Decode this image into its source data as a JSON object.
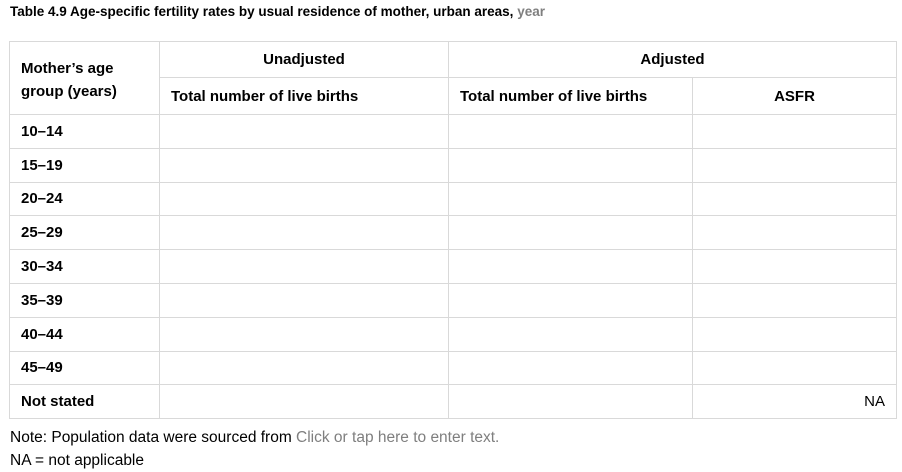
{
  "title": {
    "main": "Table 4.9 Age-specific fertility rates by usual residence of mother, urban areas, ",
    "placeholder": "year"
  },
  "table": {
    "header": {
      "age_group": "Mother’s age group (years)",
      "unadjusted": "Unadjusted",
      "adjusted": "Adjusted",
      "unadj_births": "Total number of live births",
      "adj_births": "Total number of live births",
      "asfr": "ASFR"
    },
    "rows": [
      {
        "age": "10–14",
        "unadj_births": "",
        "adj_births": "",
        "asfr": ""
      },
      {
        "age": "15–19",
        "unadj_births": "",
        "adj_births": "",
        "asfr": ""
      },
      {
        "age": "20–24",
        "unadj_births": "",
        "adj_births": "",
        "asfr": ""
      },
      {
        "age": "25–29",
        "unadj_births": "",
        "adj_births": "",
        "asfr": ""
      },
      {
        "age": "30–34",
        "unadj_births": "",
        "adj_births": "",
        "asfr": ""
      },
      {
        "age": "35–39",
        "unadj_births": "",
        "adj_births": "",
        "asfr": ""
      },
      {
        "age": "40–44",
        "unadj_births": "",
        "adj_births": "",
        "asfr": ""
      },
      {
        "age": "45–49",
        "unadj_births": "",
        "adj_births": "",
        "asfr": ""
      },
      {
        "age": "Not stated",
        "unadj_births": "",
        "adj_births": "",
        "asfr": "NA"
      }
    ]
  },
  "notes": {
    "source_prefix": "Note: Population data were sourced from ",
    "source_placeholder": "Click or tap here to enter text.",
    "na": "NA = not applicable"
  }
}
